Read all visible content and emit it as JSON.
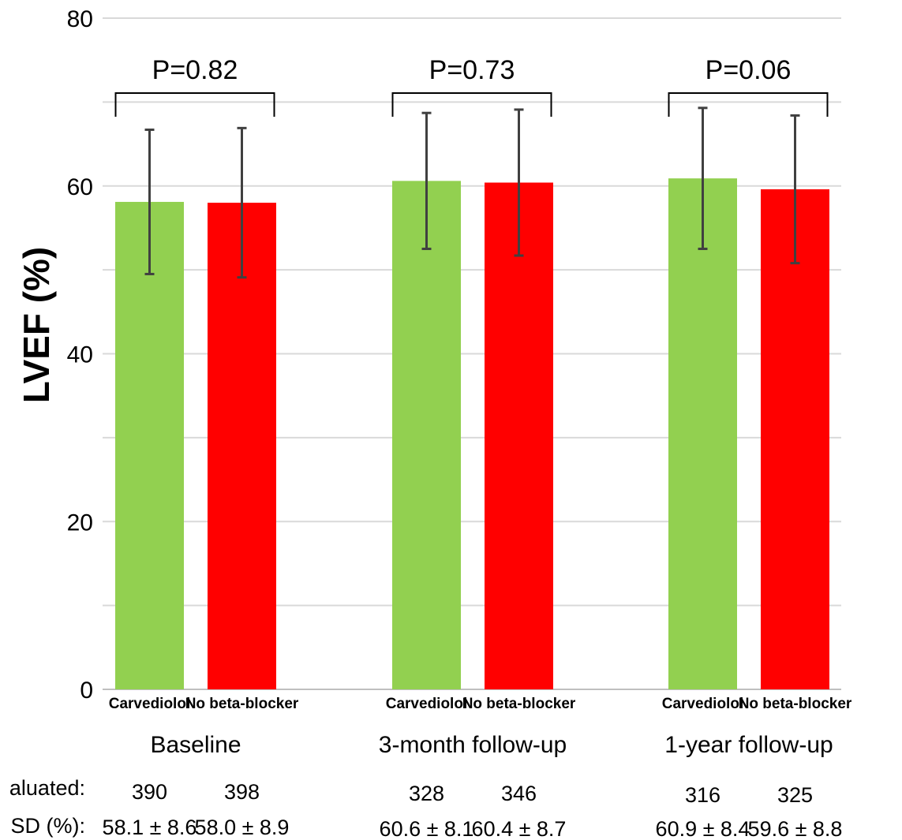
{
  "chart_data": {
    "type": "bar",
    "ylabel": "LVEF (%)",
    "ylim": [
      0,
      80
    ],
    "yticks": [
      "0",
      "20",
      "40",
      "60",
      "80"
    ],
    "grid": true,
    "bar_labels": [
      "Carvediolol",
      "No beta-blocker"
    ],
    "colors": [
      "#92d050",
      "#ff0000"
    ],
    "groups": [
      {
        "label": "Baseline",
        "p_value": "P=0.82",
        "bars": [
          {
            "label": "Carvediolol",
            "value": 58.1,
            "sd": 8.6,
            "n": "390",
            "summary": "58.1 ± 8.6"
          },
          {
            "label": "No beta-blocker",
            "value": 58.0,
            "sd": 8.9,
            "n": "398",
            "summary": "58.0 ± 8.9"
          }
        ]
      },
      {
        "label": "3-month follow-up",
        "p_value": "P=0.73",
        "bars": [
          {
            "label": "Carvediolol",
            "value": 60.6,
            "sd": 8.1,
            "n": "328",
            "summary": "60.6 ± 8.1"
          },
          {
            "label": "No beta-blocker",
            "value": 60.4,
            "sd": 8.7,
            "n": "346",
            "summary": "60.4 ± 8.7"
          }
        ]
      },
      {
        "label": "1-year follow-up",
        "p_value": "P=0.06",
        "bars": [
          {
            "label": "Carvediolol",
            "value": 60.9,
            "sd": 8.4,
            "n": "316",
            "summary": "60.9 ± 8.4"
          },
          {
            "label": "No beta-blocker",
            "value": 59.6,
            "sd": 8.8,
            "n": "325",
            "summary": "59.6 ± 8.8"
          }
        ]
      }
    ],
    "table_row_labels": [
      "aluated:",
      "SD (%):"
    ]
  }
}
